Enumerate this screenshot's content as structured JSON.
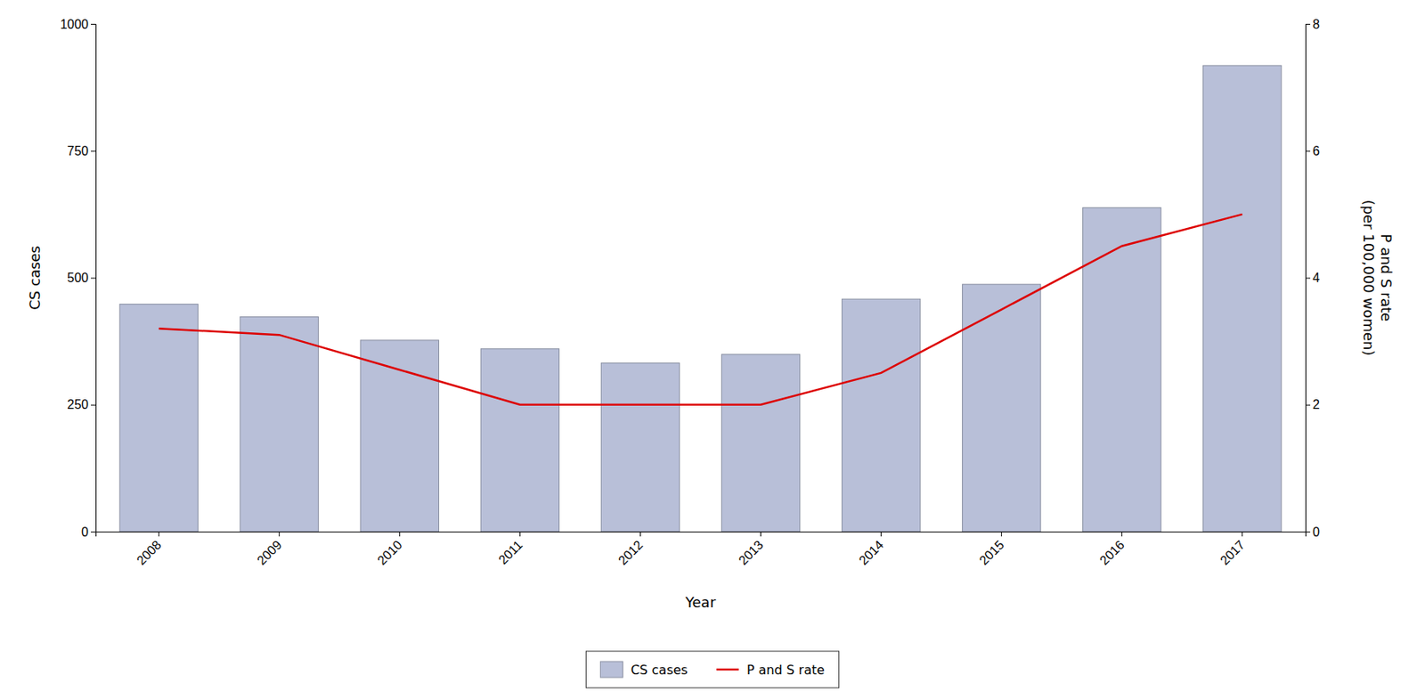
{
  "chart_data": {
    "type": "bar",
    "categories": [
      "2008",
      "2009",
      "2010",
      "2011",
      "2012",
      "2013",
      "2014",
      "2015",
      "2016",
      "2017"
    ],
    "x_label": "Year",
    "y_label": "CS cases",
    "y2_label": "P and S rate\n(per 100,000 women)",
    "series": [
      {
        "name": "CS cases",
        "type": "bar",
        "color": "#b8bfd8",
        "values": [
          448,
          423,
          377,
          360,
          332,
          349,
          458,
          487,
          638,
          918
        ]
      },
      {
        "name": "P and S rate",
        "type": "line",
        "color": "#dd0000",
        "axis": "y2",
        "values": [
          3.2,
          3.1,
          2.55,
          2.0,
          2.0,
          2.0,
          2.5,
          3.5,
          4.5,
          5.0
        ]
      }
    ],
    "ylim": [
      0,
      1000
    ],
    "yticks": [
      0,
      250,
      500,
      750,
      1000
    ],
    "y2lim": [
      0,
      8
    ],
    "y2ticks": [
      0,
      2,
      4,
      6,
      8
    ],
    "grid": false,
    "legend": "bottom"
  }
}
